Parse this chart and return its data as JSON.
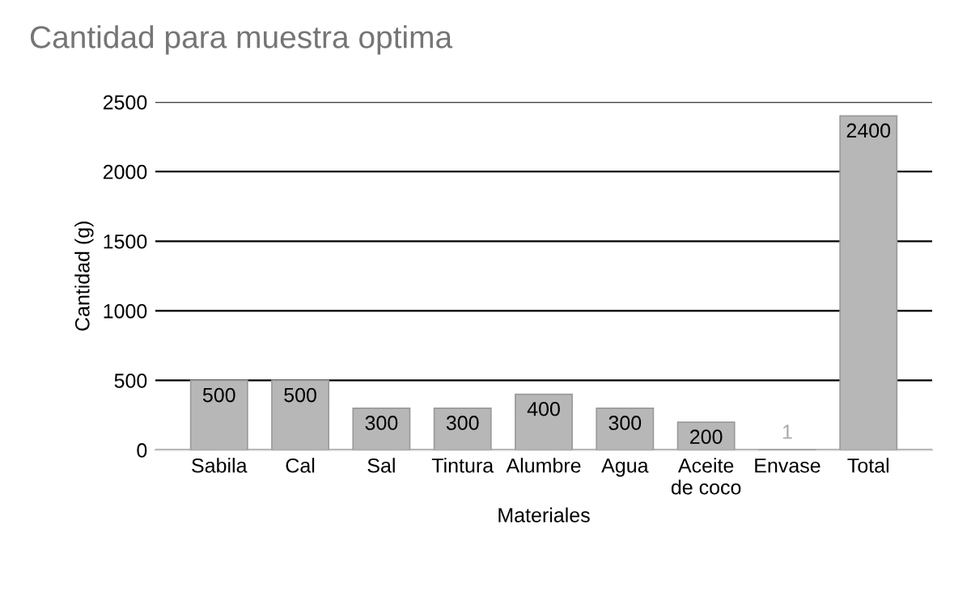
{
  "chart_data": {
    "type": "bar",
    "title": "Cantidad para muestra optima",
    "xlabel": "Materiales",
    "ylabel": "Cantidad (g)",
    "categories": [
      "Sabila",
      "Cal",
      "Sal",
      "Tintura",
      "Alumbre",
      "Agua",
      "Aceite\nde coco",
      "Envase",
      "Total"
    ],
    "values": [
      500,
      500,
      300,
      300,
      400,
      300,
      200,
      1,
      2400
    ],
    "color": "#b7b7b7",
    "ylim": [
      0,
      2500
    ],
    "yticks": [
      0,
      500,
      1000,
      1500,
      2000,
      2500
    ],
    "grid": "y",
    "data_labels": true
  }
}
